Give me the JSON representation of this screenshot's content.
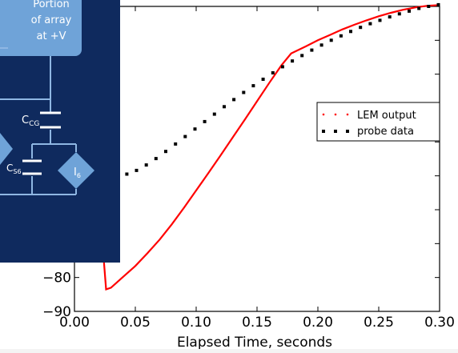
{
  "chart_data": {
    "type": "line",
    "xlabel": "Elapsed Time, seconds",
    "ylabel": "",
    "xlim": [
      0.0,
      0.3
    ],
    "ylim": [
      -90,
      0
    ],
    "x_ticks": [
      "0.00",
      "0.05",
      "0.10",
      "0.15",
      "0.20",
      "0.25",
      "0.30"
    ],
    "y_ticks_visible": [
      "−80",
      "−90"
    ],
    "legend_position": "center-right",
    "series": [
      {
        "name": "LEM output",
        "style": "line",
        "color": "#ff0000",
        "x": [
          0.023,
          0.026,
          0.03,
          0.04,
          0.05,
          0.06,
          0.07,
          0.08,
          0.09,
          0.1,
          0.11,
          0.12,
          0.13,
          0.14,
          0.15,
          0.16,
          0.17,
          0.178,
          0.19,
          0.2,
          0.21,
          0.22,
          0.23,
          0.24,
          0.25,
          0.26,
          0.27,
          0.28,
          0.29,
          0.3
        ],
        "y": [
          -70,
          -83.5,
          -83,
          -79.8,
          -76.6,
          -72.8,
          -68.8,
          -64.3,
          -59.4,
          -54.3,
          -49.2,
          -44.0,
          -38.7,
          -33.4,
          -28.0,
          -22.6,
          -17.4,
          -13.9,
          -11.8,
          -10.0,
          -8.4,
          -6.8,
          -5.4,
          -4.1,
          -2.9,
          -1.9,
          -1.0,
          -0.3,
          0.2,
          0.4
        ]
      },
      {
        "name": "probe data",
        "style": "dots",
        "color": "#000000",
        "x": [
          0.043,
          0.051,
          0.059,
          0.067,
          0.075,
          0.083,
          0.091,
          0.099,
          0.107,
          0.115,
          0.123,
          0.131,
          0.139,
          0.147,
          0.155,
          0.163,
          0.171,
          0.179,
          0.187,
          0.195,
          0.203,
          0.211,
          0.219,
          0.227,
          0.235,
          0.243,
          0.251,
          0.259,
          0.267,
          0.275,
          0.283,
          0.291,
          0.299
        ],
        "y": [
          -49.5,
          -48.4,
          -46.8,
          -44.9,
          -42.8,
          -40.6,
          -38.4,
          -36.2,
          -34.0,
          -31.8,
          -29.6,
          -27.5,
          -25.4,
          -23.4,
          -21.5,
          -19.6,
          -17.8,
          -16.1,
          -14.5,
          -12.9,
          -11.4,
          -10.0,
          -8.7,
          -7.4,
          -6.2,
          -5.1,
          -4.1,
          -3.1,
          -2.2,
          -1.4,
          -0.6,
          0.0,
          0.5
        ]
      }
    ]
  },
  "inset": {
    "box_label_lines": [
      "Portion",
      "of array",
      "at +V"
    ],
    "capacitor_cg": {
      "main": "C",
      "sub": "CG"
    },
    "capacitor_s6": {
      "main": "C",
      "sub": "S6"
    },
    "current_source": {
      "main": "I",
      "sub": "6"
    },
    "colors": {
      "background": "#0f2a5e",
      "line": "#8fb7e3",
      "box": "#6fa3d8"
    }
  }
}
